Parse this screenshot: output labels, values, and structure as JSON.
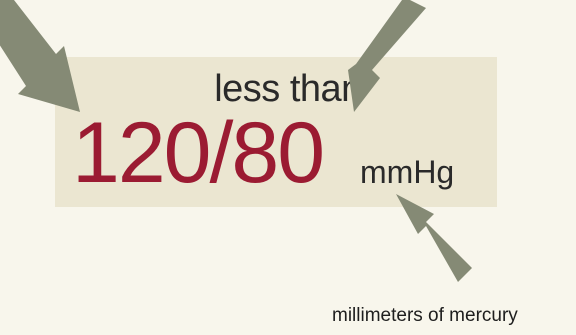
{
  "label": {
    "prefix": "less than",
    "value": "120/80",
    "unit": "mmHg",
    "unit_caption": "millimeters of mercury"
  },
  "colors": {
    "background": "#f8f6ec",
    "panel": "#ebe6d1",
    "value": "#9b1b32",
    "text": "#2a2a2a",
    "arrow": "#858a75"
  },
  "icons": [
    "arrow-icon"
  ]
}
